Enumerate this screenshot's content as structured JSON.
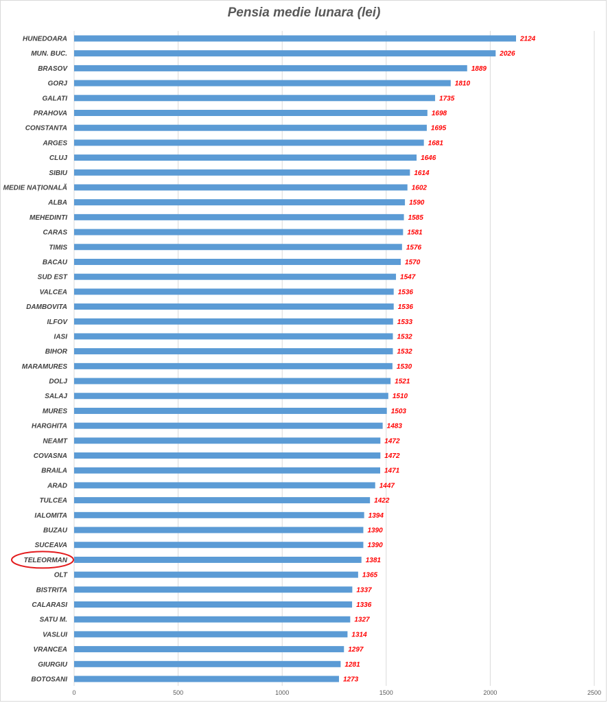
{
  "chart_data": {
    "type": "bar",
    "orientation": "horizontal",
    "title": "Pensia medie lunara (lei)",
    "xlabel": "",
    "ylabel": "",
    "xlim": [
      0,
      2500
    ],
    "x_ticks": [
      "0",
      "500",
      "1000",
      "1500",
      "2000",
      "2500"
    ],
    "grid": "vertical",
    "legend": "none",
    "categories": [
      "HUNEDOARA",
      "MUN. BUC.",
      "BRASOV",
      "GORJ",
      "GALATI",
      "PRAHOVA",
      "CONSTANTA",
      "ARGES",
      "CLUJ",
      "SIBIU",
      "MEDIE NAȚIONALĂ",
      "ALBA",
      "MEHEDINTI",
      "CARAS",
      "TIMIS",
      "BACAU",
      "SUD EST",
      "VALCEA",
      "DAMBOVITA",
      "ILFOV",
      "IASI",
      "BIHOR",
      "MARAMURES",
      "DOLJ",
      "SALAJ",
      "MURES",
      "HARGHITA",
      "NEAMT",
      "COVASNA",
      "BRAILA",
      "ARAD",
      "TULCEA",
      "IALOMITA",
      "BUZAU",
      "SUCEAVA",
      "TELEORMAN",
      "OLT",
      "BISTRITA",
      "CALARASI",
      "SATU M.",
      "VASLUI",
      "VRANCEA",
      "GIURGIU",
      "BOTOSANI"
    ],
    "values": [
      2124,
      2026,
      1889,
      1810,
      1735,
      1698,
      1695,
      1681,
      1646,
      1614,
      1602,
      1590,
      1585,
      1581,
      1576,
      1570,
      1547,
      1536,
      1536,
      1533,
      1532,
      1532,
      1530,
      1521,
      1510,
      1503,
      1483,
      1472,
      1472,
      1471,
      1447,
      1422,
      1394,
      1390,
      1390,
      1381,
      1365,
      1337,
      1336,
      1327,
      1314,
      1297,
      1281,
      1273
    ],
    "highlighted_category": "TELEORMAN",
    "colors": {
      "bar": "#5b9bd5",
      "value_label": "#ff0000",
      "category_label": "#404040",
      "gridline": "#d9d9d9",
      "highlight_ellipse": "#e31a1c",
      "title": "#595959"
    }
  }
}
